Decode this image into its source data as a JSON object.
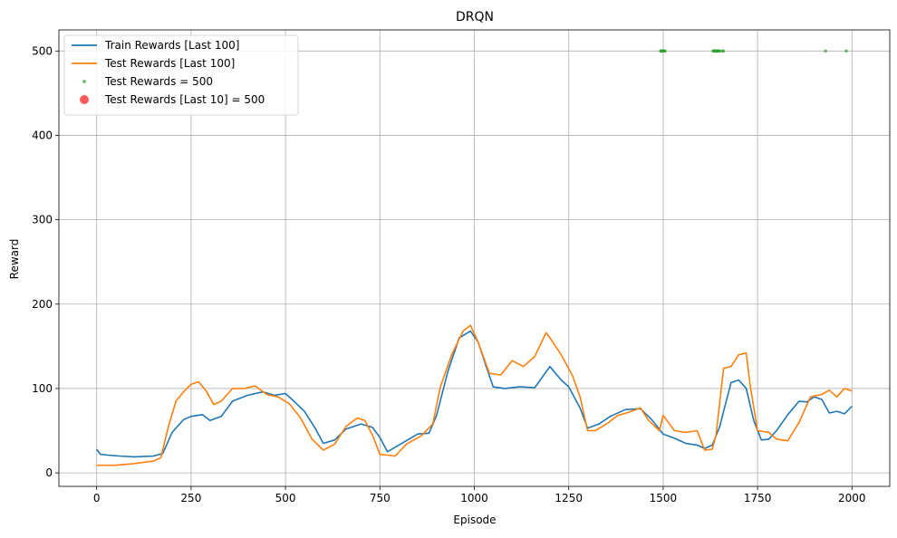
{
  "chart_data": {
    "type": "line",
    "title": "DRQN",
    "xlabel": "Episode",
    "ylabel": "Reward",
    "xlim": [
      -100,
      2100
    ],
    "ylim": [
      -16,
      525
    ],
    "xticks": [
      0,
      250,
      500,
      750,
      1000,
      1250,
      1500,
      1750,
      2000
    ],
    "yticks": [
      0,
      100,
      200,
      300,
      400,
      500
    ],
    "grid": true,
    "legend_position": "top-left",
    "series": [
      {
        "name": "Train Rewards [Last 100]",
        "kind": "line",
        "color": "#1f77b4",
        "x": [
          0,
          10,
          30,
          60,
          100,
          150,
          175,
          200,
          230,
          250,
          280,
          300,
          330,
          360,
          400,
          440,
          470,
          500,
          520,
          550,
          580,
          600,
          630,
          660,
          700,
          730,
          750,
          770,
          800,
          850,
          880,
          900,
          930,
          960,
          990,
          1010,
          1030,
          1050,
          1080,
          1120,
          1160,
          1200,
          1230,
          1250,
          1280,
          1300,
          1330,
          1360,
          1400,
          1440,
          1470,
          1500,
          1530,
          1560,
          1590,
          1610,
          1630,
          1650,
          1660,
          1680,
          1700,
          1720,
          1740,
          1760,
          1780,
          1800,
          1830,
          1860,
          1880,
          1900,
          1920,
          1940,
          1960,
          1980,
          2000
        ],
        "y": [
          28,
          22,
          21,
          20,
          19,
          20,
          23,
          48,
          63,
          67,
          69,
          62,
          67,
          85,
          92,
          96,
          92,
          94,
          86,
          73,
          52,
          35,
          39,
          52,
          58,
          54,
          42,
          25,
          33,
          46,
          47,
          68,
          120,
          160,
          168,
          155,
          128,
          102,
          100,
          102,
          101,
          126,
          110,
          102,
          77,
          53,
          58,
          67,
          75,
          76,
          63,
          46,
          41,
          35,
          33,
          29,
          33,
          55,
          73,
          107,
          110,
          100,
          62,
          39,
          40,
          50,
          69,
          85,
          84,
          90,
          87,
          71,
          73,
          70,
          79
        ]
      },
      {
        "name": "Test Rewards [Last 100]",
        "kind": "line",
        "color": "#ff7f0e",
        "x": [
          0,
          50,
          100,
          150,
          170,
          190,
          210,
          230,
          250,
          270,
          290,
          310,
          330,
          360,
          390,
          420,
          450,
          480,
          510,
          540,
          570,
          600,
          630,
          660,
          690,
          710,
          730,
          750,
          770,
          790,
          820,
          860,
          890,
          910,
          940,
          970,
          990,
          1010,
          1040,
          1070,
          1100,
          1130,
          1160,
          1190,
          1200,
          1230,
          1260,
          1280,
          1300,
          1320,
          1350,
          1380,
          1410,
          1440,
          1460,
          1490,
          1500,
          1530,
          1560,
          1590,
          1610,
          1630,
          1640,
          1660,
          1680,
          1700,
          1720,
          1730,
          1750,
          1780,
          1800,
          1830,
          1860,
          1890,
          1920,
          1940,
          1960,
          1980,
          2000
        ],
        "y": [
          9,
          9,
          11,
          14,
          18,
          55,
          85,
          96,
          105,
          108,
          97,
          81,
          85,
          100,
          100,
          103,
          93,
          90,
          82,
          65,
          40,
          27,
          34,
          55,
          65,
          62,
          45,
          22,
          21,
          20,
          34,
          44,
          58,
          102,
          140,
          168,
          175,
          155,
          118,
          116,
          133,
          126,
          138,
          166,
          160,
          140,
          115,
          90,
          50,
          50,
          58,
          68,
          72,
          77,
          63,
          50,
          68,
          50,
          48,
          50,
          27,
          28,
          45,
          124,
          126,
          140,
          142,
          105,
          50,
          48,
          40,
          38,
          60,
          90,
          93,
          98,
          90,
          100,
          97
        ]
      },
      {
        "name": "Test Rewards = 500",
        "kind": "scatter",
        "color": "#2ca02c",
        "x": [
          1493,
          1495,
          1497,
          1499,
          1501,
          1503,
          1505,
          1632,
          1634,
          1636,
          1638,
          1640,
          1642,
          1644,
          1646,
          1648,
          1650,
          1657,
          1660,
          1930,
          1985
        ],
        "y": [
          500,
          500,
          500,
          500,
          500,
          500,
          500,
          500,
          500,
          500,
          500,
          500,
          500,
          500,
          500,
          500,
          500,
          500,
          500,
          500,
          500
        ]
      },
      {
        "name": "Test Rewards [Last 10] = 500",
        "kind": "scatter",
        "color": "#ff0000",
        "x": [],
        "y": []
      }
    ]
  }
}
